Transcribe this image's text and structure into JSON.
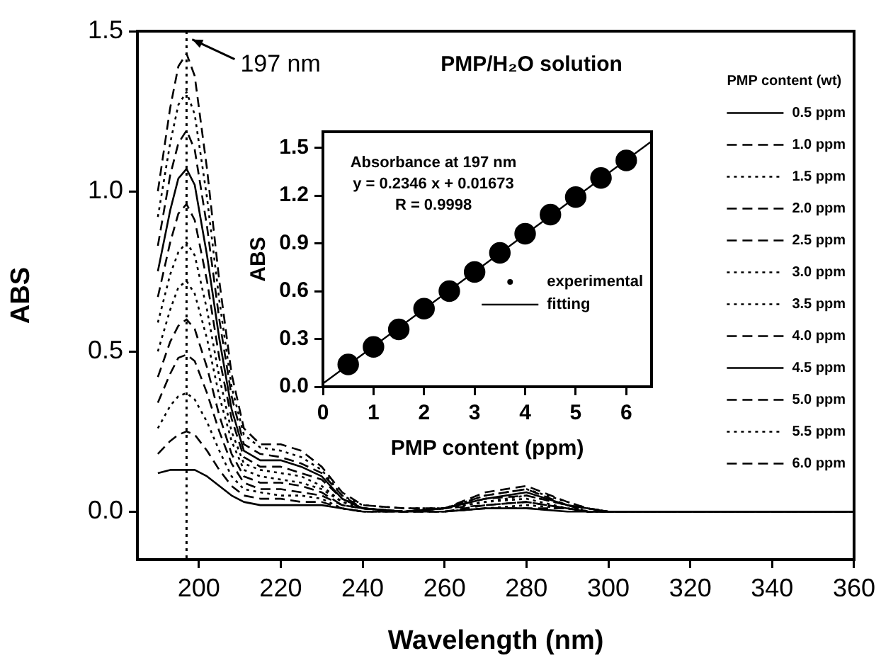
{
  "chart_data": [
    {
      "type": "line",
      "title": "PMP/H₂O solution",
      "xlabel": "Wavelength (nm)",
      "ylabel": "ABS",
      "legend_title": "PMP content (wt)",
      "legend": "top right",
      "marker": "none",
      "xlim": [
        185,
        360
      ],
      "ylim": [
        -0.15,
        1.5
      ],
      "xticks": [
        200,
        220,
        240,
        260,
        280,
        300,
        320,
        340,
        360
      ],
      "yticks": [
        {
          "value": 0,
          "label": "0.0"
        },
        {
          "value": 0.5,
          "label": "0.5"
        },
        {
          "value": 1,
          "label": "1.0"
        },
        {
          "value": 1.5,
          "label": "1.5"
        }
      ],
      "x": [
        190,
        193,
        195,
        197,
        199,
        202,
        205,
        208,
        211,
        215,
        220,
        225,
        230,
        235,
        240,
        250,
        260,
        270,
        280,
        290,
        295,
        300,
        320,
        340,
        360
      ],
      "ref_lines": [
        {
          "axis": "x",
          "value": 197,
          "line_style": "dotted",
          "color": "#000000"
        }
      ],
      "annotations": [
        {
          "text": "197 nm",
          "x": 197,
          "y": 1.43
        }
      ],
      "series": [
        {
          "name": "0.5 ppm",
          "color": "#000000",
          "line_style": "solid",
          "values": [
            0.12,
            0.13,
            0.13,
            0.13,
            0.13,
            0.11,
            0.08,
            0.05,
            0.03,
            0.02,
            0.02,
            0.02,
            0.02,
            0.01,
            0,
            0,
            0,
            0.01,
            0.01,
            0,
            0,
            0,
            0,
            0,
            0
          ]
        },
        {
          "name": "1.0 ppm",
          "color": "#000000",
          "line_style": "dashed",
          "values": [
            0.18,
            0.22,
            0.24,
            0.25,
            0.24,
            0.19,
            0.13,
            0.08,
            0.05,
            0.04,
            0.04,
            0.03,
            0.03,
            0.01,
            0,
            0,
            0,
            0.01,
            0.01,
            0.01,
            0,
            0,
            0,
            0,
            0
          ]
        },
        {
          "name": "1.5 ppm",
          "color": "#000000",
          "line_style": "dotted",
          "values": [
            0.26,
            0.33,
            0.36,
            0.37,
            0.35,
            0.28,
            0.19,
            0.11,
            0.07,
            0.06,
            0.05,
            0.05,
            0.04,
            0.01,
            0,
            0,
            0,
            0.01,
            0.02,
            0.01,
            0,
            0,
            0,
            0,
            0
          ]
        },
        {
          "name": "2.0 ppm",
          "color": "#000000",
          "line_style": "dashed",
          "values": [
            0.34,
            0.43,
            0.48,
            0.49,
            0.47,
            0.37,
            0.25,
            0.15,
            0.09,
            0.07,
            0.07,
            0.06,
            0.05,
            0.02,
            0.01,
            0,
            0,
            0.02,
            0.03,
            0.01,
            0,
            0,
            0,
            0,
            0
          ]
        },
        {
          "name": "2.5 ppm",
          "color": "#000000",
          "line_style": "dashed",
          "values": [
            0.42,
            0.53,
            0.58,
            0.6,
            0.57,
            0.45,
            0.3,
            0.18,
            0.11,
            0.09,
            0.09,
            0.08,
            0.06,
            0.02,
            0.01,
            0,
            0.01,
            0.02,
            0.03,
            0.01,
            0,
            0,
            0,
            0,
            0
          ]
        },
        {
          "name": "3.0 ppm",
          "color": "#000000",
          "line_style": "dotted",
          "values": [
            0.5,
            0.63,
            0.7,
            0.72,
            0.68,
            0.54,
            0.36,
            0.22,
            0.13,
            0.11,
            0.1,
            0.09,
            0.07,
            0.03,
            0.01,
            0,
            0.01,
            0.03,
            0.04,
            0.01,
            0,
            0,
            0,
            0,
            0
          ]
        },
        {
          "name": "3.5 ppm",
          "color": "#000000",
          "line_style": "dotted",
          "values": [
            0.59,
            0.74,
            0.81,
            0.84,
            0.8,
            0.63,
            0.42,
            0.25,
            0.15,
            0.13,
            0.12,
            0.11,
            0.08,
            0.03,
            0.01,
            0,
            0.01,
            0.03,
            0.05,
            0.02,
            0,
            0,
            0,
            0,
            0
          ]
        },
        {
          "name": "4.0 ppm",
          "color": "#000000",
          "line_style": "dashed",
          "values": [
            0.67,
            0.84,
            0.93,
            0.96,
            0.91,
            0.72,
            0.48,
            0.29,
            0.17,
            0.14,
            0.14,
            0.12,
            0.1,
            0.04,
            0.01,
            0,
            0.01,
            0.04,
            0.05,
            0.02,
            0,
            0,
            0,
            0,
            0
          ]
        },
        {
          "name": "4.5 ppm",
          "color": "#000000",
          "line_style": "solid",
          "values": [
            0.75,
            0.94,
            1.04,
            1.07,
            1.02,
            0.8,
            0.54,
            0.32,
            0.19,
            0.16,
            0.16,
            0.14,
            0.11,
            0.04,
            0.01,
            0,
            0.01,
            0.04,
            0.06,
            0.02,
            0.01,
            0,
            0,
            0,
            0
          ]
        },
        {
          "name": "5.0 ppm",
          "color": "#000000",
          "line_style": "dashed",
          "values": [
            0.83,
            1.05,
            1.15,
            1.19,
            1.13,
            0.89,
            0.6,
            0.36,
            0.21,
            0.18,
            0.17,
            0.15,
            0.12,
            0.05,
            0.01,
            0,
            0.01,
            0.05,
            0.07,
            0.02,
            0.01,
            0,
            0,
            0,
            0
          ]
        },
        {
          "name": "5.5 ppm",
          "color": "#000000",
          "line_style": "dotted",
          "values": [
            0.92,
            1.15,
            1.27,
            1.31,
            1.24,
            0.98,
            0.66,
            0.39,
            0.24,
            0.2,
            0.19,
            0.17,
            0.13,
            0.05,
            0.02,
            0.01,
            0.01,
            0.05,
            0.07,
            0.03,
            0.01,
            0,
            0,
            0,
            0
          ]
        },
        {
          "name": "6.0 ppm",
          "color": "#000000",
          "line_style": "dashed",
          "values": [
            1.0,
            1.26,
            1.39,
            1.43,
            1.36,
            1.07,
            0.72,
            0.43,
            0.26,
            0.21,
            0.21,
            0.19,
            0.14,
            0.06,
            0.02,
            0.01,
            0.01,
            0.06,
            0.08,
            0.03,
            0.01,
            0,
            0,
            0,
            0
          ]
        }
      ]
    },
    {
      "type": "scatter",
      "xlabel": "PMP content (ppm)",
      "ylabel": "ABS",
      "legend": "bottom right",
      "xlim": [
        0,
        6.5
      ],
      "ylim": [
        0,
        1.6
      ],
      "xticks": [
        0,
        1,
        2,
        3,
        4,
        5,
        6
      ],
      "yticks": [
        {
          "value": 0,
          "label": "0.0"
        },
        {
          "value": 0.3,
          "label": "0.3"
        },
        {
          "value": 0.6,
          "label": "0.6"
        },
        {
          "value": 0.9,
          "label": "0.9"
        },
        {
          "value": 1.2,
          "label": "1.2"
        },
        {
          "value": 1.5,
          "label": "1.5"
        }
      ],
      "annotations": [
        "Absorbance at 197 nm",
        "y = 0.2346 x + 0.01673",
        "R = 0.9998"
      ],
      "x": [
        0.5,
        1,
        1.5,
        2,
        2.5,
        3,
        3.5,
        4,
        4.5,
        5,
        5.5,
        6
      ],
      "series": [
        {
          "name": "experimental",
          "type": "scatter",
          "marker": "circle",
          "color": "#000000",
          "values": [
            0.14,
            0.25,
            0.36,
            0.49,
            0.6,
            0.72,
            0.84,
            0.96,
            1.08,
            1.19,
            1.31,
            1.42
          ]
        },
        {
          "name": "fitting",
          "type": "line",
          "marker": "none",
          "line_style": "solid",
          "color": "#000000",
          "x": [
            0,
            6.5
          ],
          "values": [
            0.02,
            1.54
          ]
        }
      ]
    }
  ]
}
